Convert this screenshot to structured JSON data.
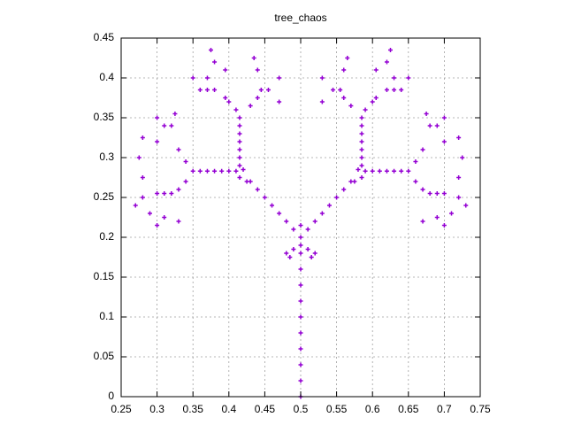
{
  "chart_data": {
    "type": "scatter",
    "title": "tree_chaos",
    "color": "#9400d3",
    "grid": true,
    "xlim": [
      0.25,
      0.75
    ],
    "ylim": [
      0,
      0.45
    ],
    "xticks": [
      0.25,
      0.3,
      0.35,
      0.4,
      0.45,
      0.5,
      0.55,
      0.6,
      0.65,
      0.7,
      0.75
    ],
    "yticks": [
      0,
      0.05,
      0.1,
      0.15,
      0.2,
      0.25,
      0.3,
      0.35,
      0.4,
      0.45
    ],
    "x": [
      0.5,
      0.5,
      0.5,
      0.5,
      0.5,
      0.5,
      0.5,
      0.5,
      0.5,
      0.5,
      0.5,
      0.48,
      0.485,
      0.49,
      0.51,
      0.515,
      0.52,
      0.5,
      0.5,
      0.49,
      0.48,
      0.47,
      0.46,
      0.45,
      0.44,
      0.43,
      0.415,
      0.42,
      0.425,
      0.41,
      0.4,
      0.39,
      0.38,
      0.37,
      0.36,
      0.35,
      0.415,
      0.415,
      0.415,
      0.415,
      0.415,
      0.415,
      0.415,
      0.41,
      0.4,
      0.395,
      0.43,
      0.44,
      0.445,
      0.36,
      0.37,
      0.38,
      0.455,
      0.37,
      0.375,
      0.38,
      0.35,
      0.395,
      0.44,
      0.435,
      0.47,
      0.47,
      0.34,
      0.33,
      0.32,
      0.325,
      0.31,
      0.3,
      0.3,
      0.28,
      0.275,
      0.34,
      0.33,
      0.32,
      0.31,
      0.3,
      0.28,
      0.27,
      0.28,
      0.29,
      0.31,
      0.33,
      0.3,
      0.51,
      0.52,
      0.53,
      0.54,
      0.55,
      0.56,
      0.57,
      0.585,
      0.58,
      0.575,
      0.59,
      0.6,
      0.61,
      0.62,
      0.63,
      0.64,
      0.65,
      0.585,
      0.585,
      0.585,
      0.585,
      0.585,
      0.585,
      0.585,
      0.59,
      0.6,
      0.605,
      0.57,
      0.56,
      0.555,
      0.64,
      0.63,
      0.62,
      0.545,
      0.63,
      0.625,
      0.62,
      0.65,
      0.605,
      0.56,
      0.565,
      0.53,
      0.53,
      0.66,
      0.67,
      0.68,
      0.675,
      0.69,
      0.7,
      0.7,
      0.72,
      0.725,
      0.66,
      0.67,
      0.68,
      0.69,
      0.7,
      0.72,
      0.73,
      0.72,
      0.71,
      0.69,
      0.67,
      0.7
    ],
    "y": [
      0,
      0.02,
      0.04,
      0.06,
      0.08,
      0.1,
      0.12,
      0.14,
      0.16,
      0.18,
      0.2,
      0.18,
      0.175,
      0.185,
      0.185,
      0.175,
      0.18,
      0.19,
      0.215,
      0.21,
      0.22,
      0.23,
      0.24,
      0.25,
      0.26,
      0.27,
      0.275,
      0.285,
      0.27,
      0.283,
      0.283,
      0.283,
      0.283,
      0.283,
      0.283,
      0.283,
      0.29,
      0.3,
      0.31,
      0.32,
      0.33,
      0.34,
      0.35,
      0.36,
      0.37,
      0.375,
      0.365,
      0.375,
      0.385,
      0.385,
      0.385,
      0.385,
      0.385,
      0.4,
      0.435,
      0.42,
      0.4,
      0.41,
      0.41,
      0.425,
      0.37,
      0.4,
      0.295,
      0.31,
      0.34,
      0.355,
      0.34,
      0.35,
      0.32,
      0.325,
      0.3,
      0.27,
      0.26,
      0.255,
      0.255,
      0.255,
      0.275,
      0.24,
      0.25,
      0.23,
      0.225,
      0.22,
      0.215,
      0.21,
      0.22,
      0.23,
      0.24,
      0.25,
      0.26,
      0.27,
      0.275,
      0.285,
      0.27,
      0.283,
      0.283,
      0.283,
      0.283,
      0.283,
      0.283,
      0.283,
      0.29,
      0.3,
      0.31,
      0.32,
      0.33,
      0.34,
      0.35,
      0.36,
      0.37,
      0.375,
      0.365,
      0.375,
      0.385,
      0.385,
      0.385,
      0.385,
      0.385,
      0.4,
      0.435,
      0.42,
      0.4,
      0.41,
      0.41,
      0.425,
      0.37,
      0.4,
      0.295,
      0.31,
      0.34,
      0.355,
      0.34,
      0.35,
      0.32,
      0.325,
      0.3,
      0.27,
      0.26,
      0.255,
      0.255,
      0.255,
      0.275,
      0.24,
      0.25,
      0.23,
      0.225,
      0.22,
      0.215
    ]
  }
}
